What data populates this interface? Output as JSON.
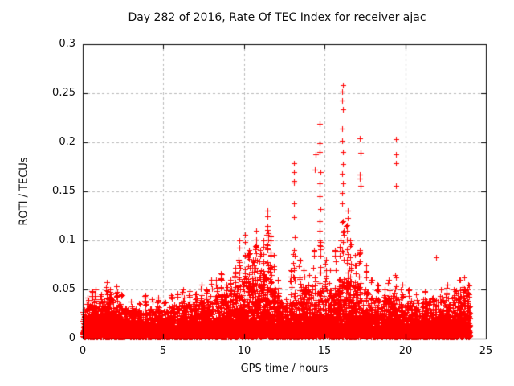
{
  "chart_data": {
    "type": "scatter",
    "title": "Day 282 of 2016, Rate Of TEC Index for receiver ajac",
    "xlabel": "GPS time / hours",
    "ylabel": "ROTI / TECUs",
    "xlim": [
      0,
      25
    ],
    "ylim": [
      0,
      0.3
    ],
    "x_data_range": [
      0,
      24
    ],
    "xticks": [
      0,
      5,
      10,
      15,
      20,
      25
    ],
    "yticks": [
      0,
      0.05,
      0.1,
      0.15,
      0.2,
      0.25,
      0.3
    ],
    "xtick_labels": [
      "0",
      "5",
      "10",
      "15",
      "20",
      "25"
    ],
    "ytick_labels": [
      "0",
      "0.05",
      "0.1",
      "0.15",
      "0.2",
      "0.25",
      "0.3"
    ],
    "grid": {
      "on": true,
      "style": "dashed",
      "color": "#b8b8b8"
    },
    "marker": {
      "shape": "plus",
      "color": "#ff0000",
      "size": 7
    },
    "background_color": "#ffffff",
    "frame_color": "#000000",
    "seed": 282,
    "background_points": 9000,
    "band_envelope": {
      "hours": [
        0,
        0.5,
        1,
        1.5,
        2,
        2.5,
        3,
        3.5,
        4,
        4.5,
        5,
        5.5,
        6,
        6.5,
        7,
        7.5,
        8,
        8.5,
        9,
        9.5,
        10,
        10.5,
        11,
        11.5,
        12,
        12.5,
        13,
        13.5,
        14,
        14.5,
        15,
        15.5,
        16,
        16.5,
        17,
        17.5,
        18,
        18.5,
        19,
        19.5,
        20,
        20.5,
        21,
        21.5,
        22,
        22.5,
        23,
        23.5,
        24
      ],
      "top": [
        0.028,
        0.032,
        0.03,
        0.036,
        0.032,
        0.028,
        0.026,
        0.024,
        0.025,
        0.026,
        0.027,
        0.028,
        0.03,
        0.03,
        0.031,
        0.031,
        0.033,
        0.038,
        0.04,
        0.045,
        0.048,
        0.05,
        0.052,
        0.055,
        0.04,
        0.026,
        0.035,
        0.042,
        0.042,
        0.048,
        0.04,
        0.042,
        0.05,
        0.055,
        0.048,
        0.04,
        0.034,
        0.032,
        0.036,
        0.04,
        0.034,
        0.031,
        0.033,
        0.031,
        0.034,
        0.036,
        0.04,
        0.044,
        0.038
      ]
    },
    "pillar_columns": [
      {
        "x": 0.3,
        "top": 0.042,
        "n": 14
      },
      {
        "x": 0.55,
        "top": 0.048,
        "n": 16
      },
      {
        "x": 0.8,
        "top": 0.05,
        "n": 14
      },
      {
        "x": 1.15,
        "top": 0.045,
        "n": 12
      },
      {
        "x": 1.5,
        "top": 0.057,
        "n": 18
      },
      {
        "x": 1.7,
        "top": 0.05,
        "n": 12
      },
      {
        "x": 2.1,
        "top": 0.053,
        "n": 16
      },
      {
        "x": 2.4,
        "top": 0.045,
        "n": 10
      },
      {
        "x": 3.0,
        "top": 0.038,
        "n": 8
      },
      {
        "x": 3.5,
        "top": 0.036,
        "n": 8
      },
      {
        "x": 3.9,
        "top": 0.044,
        "n": 10
      },
      {
        "x": 4.3,
        "top": 0.04,
        "n": 8
      },
      {
        "x": 4.7,
        "top": 0.042,
        "n": 10
      },
      {
        "x": 5.1,
        "top": 0.038,
        "n": 8
      },
      {
        "x": 5.5,
        "top": 0.044,
        "n": 10
      },
      {
        "x": 5.9,
        "top": 0.046,
        "n": 10
      },
      {
        "x": 6.2,
        "top": 0.05,
        "n": 12
      },
      {
        "x": 6.6,
        "top": 0.048,
        "n": 10
      },
      {
        "x": 7.0,
        "top": 0.046,
        "n": 10
      },
      {
        "x": 7.35,
        "top": 0.055,
        "n": 14
      },
      {
        "x": 7.7,
        "top": 0.05,
        "n": 10
      },
      {
        "x": 7.95,
        "top": 0.06,
        "n": 12
      },
      {
        "x": 8.3,
        "top": 0.06,
        "n": 14
      },
      {
        "x": 8.6,
        "top": 0.066,
        "n": 14
      },
      {
        "x": 8.9,
        "top": 0.055,
        "n": 10
      },
      {
        "x": 9.2,
        "top": 0.06,
        "n": 12
      },
      {
        "x": 9.45,
        "top": 0.072,
        "n": 14
      },
      {
        "x": 9.7,
        "top": 0.08,
        "n": 16
      },
      {
        "x": 10.05,
        "top": 0.085,
        "n": 16
      },
      {
        "x": 10.3,
        "top": 0.09,
        "n": 18
      },
      {
        "x": 10.55,
        "top": 0.08,
        "n": 14
      },
      {
        "x": 10.75,
        "top": 0.095,
        "n": 18
      },
      {
        "x": 11.0,
        "top": 0.09,
        "n": 16
      },
      {
        "x": 11.2,
        "top": 0.1,
        "n": 18
      },
      {
        "x": 11.45,
        "top": 0.115,
        "n": 20
      },
      {
        "x": 11.65,
        "top": 0.105,
        "n": 18
      },
      {
        "x": 11.85,
        "top": 0.085,
        "n": 14
      },
      {
        "x": 12.1,
        "top": 0.06,
        "n": 10
      },
      {
        "x": 12.6,
        "top": 0.04,
        "n": 8
      },
      {
        "x": 12.9,
        "top": 0.07,
        "n": 10
      },
      {
        "x": 13.1,
        "top": 0.09,
        "n": 14
      },
      {
        "x": 13.45,
        "top": 0.08,
        "n": 12
      },
      {
        "x": 13.7,
        "top": 0.07,
        "n": 10
      },
      {
        "x": 14.0,
        "top": 0.065,
        "n": 10
      },
      {
        "x": 14.35,
        "top": 0.09,
        "n": 12
      },
      {
        "x": 14.7,
        "top": 0.1,
        "n": 14
      },
      {
        "x": 15.05,
        "top": 0.08,
        "n": 12
      },
      {
        "x": 15.35,
        "top": 0.07,
        "n": 10
      },
      {
        "x": 15.65,
        "top": 0.09,
        "n": 12
      },
      {
        "x": 15.95,
        "top": 0.1,
        "n": 14
      },
      {
        "x": 16.15,
        "top": 0.12,
        "n": 16
      },
      {
        "x": 16.4,
        "top": 0.13,
        "n": 18
      },
      {
        "x": 16.6,
        "top": 0.1,
        "n": 14
      },
      {
        "x": 16.9,
        "top": 0.085,
        "n": 12
      },
      {
        "x": 17.2,
        "top": 0.09,
        "n": 12
      },
      {
        "x": 17.55,
        "top": 0.075,
        "n": 10
      },
      {
        "x": 17.9,
        "top": 0.06,
        "n": 8
      },
      {
        "x": 18.3,
        "top": 0.055,
        "n": 8
      },
      {
        "x": 18.7,
        "top": 0.05,
        "n": 8
      },
      {
        "x": 19.0,
        "top": 0.06,
        "n": 10
      },
      {
        "x": 19.4,
        "top": 0.065,
        "n": 10
      },
      {
        "x": 19.8,
        "top": 0.055,
        "n": 8
      },
      {
        "x": 20.2,
        "top": 0.05,
        "n": 8
      },
      {
        "x": 20.7,
        "top": 0.045,
        "n": 6
      },
      {
        "x": 21.2,
        "top": 0.048,
        "n": 8
      },
      {
        "x": 21.7,
        "top": 0.042,
        "n": 6
      },
      {
        "x": 22.2,
        "top": 0.05,
        "n": 8
      },
      {
        "x": 22.6,
        "top": 0.055,
        "n": 8
      },
      {
        "x": 23.0,
        "top": 0.05,
        "n": 8
      },
      {
        "x": 23.35,
        "top": 0.06,
        "n": 10
      },
      {
        "x": 23.65,
        "top": 0.062,
        "n": 10
      },
      {
        "x": 23.9,
        "top": 0.055,
        "n": 8
      }
    ],
    "spike_points": [
      {
        "x": 9.7,
        "ys": [
          0.1,
          0.093
        ]
      },
      {
        "x": 10.05,
        "ys": [
          0.106,
          0.098
        ]
      },
      {
        "x": 10.75,
        "ys": [
          0.11,
          0.101
        ]
      },
      {
        "x": 11.45,
        "ys": [
          0.13,
          0.125,
          0.111
        ]
      },
      {
        "x": 13.1,
        "ys": [
          0.179,
          0.17,
          0.161,
          0.159,
          0.138,
          0.124,
          0.103
        ]
      },
      {
        "x": 14.4,
        "ys": [
          0.188,
          0.172
        ]
      },
      {
        "x": 14.7,
        "ys": [
          0.219,
          0.199,
          0.19,
          0.17,
          0.158,
          0.145,
          0.132,
          0.12,
          0.11
        ]
      },
      {
        "x": 16.1,
        "ys": [
          0.258,
          0.252,
          0.243,
          0.234,
          0.214,
          0.202,
          0.19,
          0.178,
          0.168,
          0.158,
          0.148,
          0.138
        ]
      },
      {
        "x": 17.2,
        "ys": [
          0.204,
          0.189,
          0.167,
          0.163,
          0.156
        ]
      },
      {
        "x": 19.4,
        "ys": [
          0.203,
          0.188,
          0.179,
          0.156
        ]
      },
      {
        "x": 21.9,
        "ys": [
          0.083
        ]
      }
    ]
  }
}
